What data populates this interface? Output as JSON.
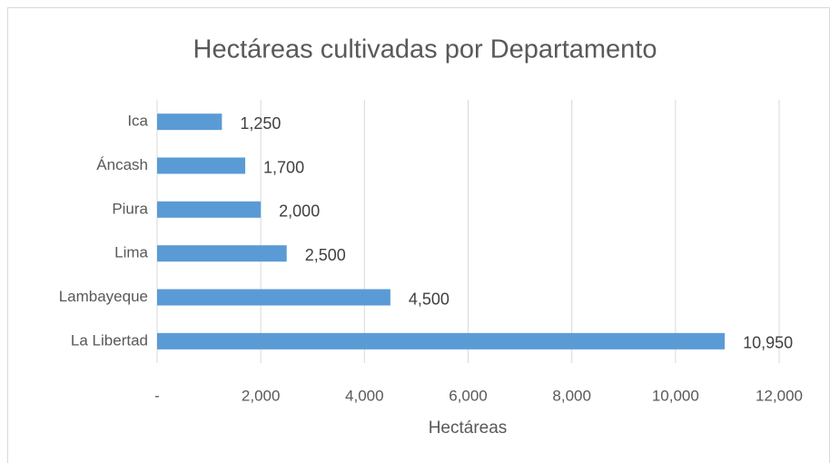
{
  "chart_data": {
    "type": "barh",
    "title": "Hectáreas cultivadas por Departamento",
    "x_label": "Hectáreas",
    "categories": [
      "La Libertad",
      "Lambayeque",
      "Lima",
      "Piura",
      "Áncash",
      "Ica"
    ],
    "values": [
      10950,
      4500,
      2500,
      2000,
      1700,
      1250
    ],
    "value_labels": [
      "10,950",
      "4,500",
      "2,500",
      "2,000",
      "1,700",
      "1,250"
    ],
    "color": "#5b9bd5",
    "xlim": [
      0,
      12000
    ],
    "xticks": [
      {
        "value": 0,
        "label": "-"
      },
      {
        "value": 2000,
        "label": "2,000"
      },
      {
        "value": 4000,
        "label": "4,000"
      },
      {
        "value": 6000,
        "label": "6,000"
      },
      {
        "value": 8000,
        "label": "8,000"
      },
      {
        "value": 10000,
        "label": "10,000"
      },
      {
        "value": 12000,
        "label": "12,000"
      }
    ],
    "grid": true
  }
}
